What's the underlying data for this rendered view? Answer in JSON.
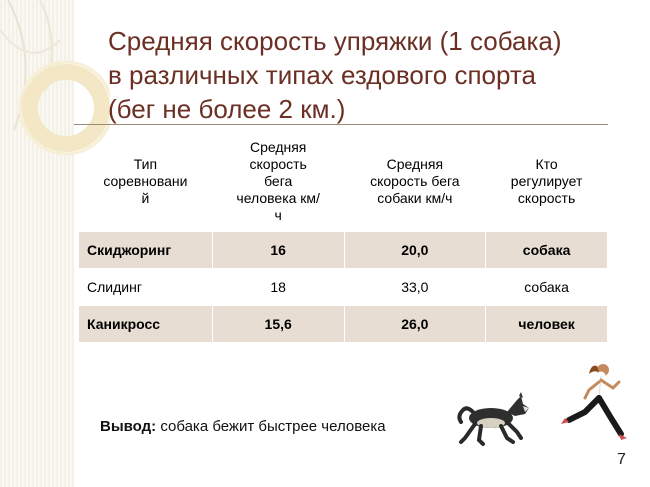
{
  "slide": {
    "title_lines": [
      "Средняя скорость упряжки (1 собака)",
      "в различных типах ездового спорта",
      "(бег не более 2 км.)"
    ],
    "page_number": "7",
    "colors": {
      "title": "#6b2f24",
      "row_shade": "#e8ddd2",
      "left_band": "#f4f1e8"
    }
  },
  "table": {
    "headers": [
      [
        "Тип",
        "соревновани",
        "й"
      ],
      [
        "Средняя",
        "скорость",
        "бега",
        "человека км/",
        "ч"
      ],
      [
        "Средняя",
        "скорость бега",
        "собаки  км/ч"
      ],
      [
        "Кто",
        "регулирует",
        "скорость"
      ]
    ],
    "rows": [
      [
        "Скиджоринг",
        "16",
        "20,0",
        "собака"
      ],
      [
        "Слидинг",
        "18",
        "33,0",
        "собака"
      ],
      [
        "Каникросс",
        "15,6",
        "26,0",
        "человек"
      ]
    ]
  },
  "conclusion": {
    "label": "Вывод:",
    "text": " собака бежит быстрее человека"
  },
  "images": {
    "dog": "running-husky-dog",
    "runner": "running-woman"
  }
}
